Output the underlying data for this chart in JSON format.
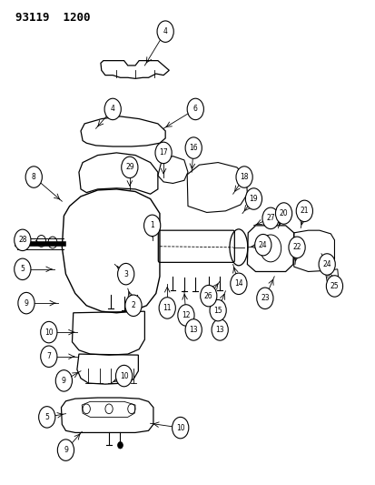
{
  "title_code": "93119  1200",
  "background_color": "#ffffff",
  "line_color": "#000000",
  "fig_width": 4.14,
  "fig_height": 5.33,
  "dpi": 100,
  "labels": [
    [
      0.44,
      0.935,
      4,
      0.385,
      0.865
    ],
    [
      0.3,
      0.775,
      4,
      0.255,
      0.735
    ],
    [
      0.52,
      0.775,
      6,
      0.435,
      0.735
    ],
    [
      0.09,
      0.635,
      8,
      0.165,
      0.585
    ],
    [
      0.06,
      0.505,
      28,
      0.115,
      0.495
    ],
    [
      0.06,
      0.445,
      5,
      0.145,
      0.445
    ],
    [
      0.07,
      0.375,
      9,
      0.155,
      0.375
    ],
    [
      0.13,
      0.315,
      10,
      0.205,
      0.315
    ],
    [
      0.13,
      0.265,
      7,
      0.205,
      0.265
    ],
    [
      0.17,
      0.215,
      9,
      0.215,
      0.235
    ],
    [
      0.33,
      0.225,
      10,
      0.295,
      0.21
    ],
    [
      0.345,
      0.655,
      29,
      0.345,
      0.61
    ],
    [
      0.435,
      0.685,
      17,
      0.435,
      0.635
    ],
    [
      0.515,
      0.695,
      16,
      0.51,
      0.645
    ],
    [
      0.405,
      0.535,
      1,
      0.405,
      0.505
    ],
    [
      0.335,
      0.435,
      3,
      0.305,
      0.455
    ],
    [
      0.355,
      0.37,
      2,
      0.34,
      0.405
    ],
    [
      0.445,
      0.365,
      11,
      0.445,
      0.415
    ],
    [
      0.495,
      0.35,
      12,
      0.49,
      0.4
    ],
    [
      0.515,
      0.32,
      13,
      0.5,
      0.368
    ],
    [
      0.585,
      0.32,
      13,
      0.575,
      0.365
    ],
    [
      0.65,
      0.635,
      18,
      0.62,
      0.6
    ],
    [
      0.675,
      0.59,
      19,
      0.645,
      0.56
    ],
    [
      0.72,
      0.55,
      27,
      0.675,
      0.535
    ],
    [
      0.7,
      0.495,
      24,
      0.66,
      0.49
    ],
    [
      0.635,
      0.415,
      14,
      0.62,
      0.455
    ],
    [
      0.58,
      0.36,
      15,
      0.6,
      0.4
    ],
    [
      0.555,
      0.39,
      26,
      0.585,
      0.42
    ],
    [
      0.755,
      0.56,
      20,
      0.74,
      0.53
    ],
    [
      0.81,
      0.565,
      21,
      0.8,
      0.53
    ],
    [
      0.79,
      0.49,
      22,
      0.785,
      0.455
    ],
    [
      0.705,
      0.385,
      23,
      0.73,
      0.43
    ],
    [
      0.87,
      0.455,
      24,
      0.855,
      0.477
    ],
    [
      0.89,
      0.41,
      25,
      0.868,
      0.445
    ],
    [
      0.125,
      0.14,
      5,
      0.175,
      0.147
    ],
    [
      0.175,
      0.072,
      9,
      0.218,
      0.11
    ],
    [
      0.48,
      0.118,
      10,
      0.4,
      0.127
    ]
  ]
}
